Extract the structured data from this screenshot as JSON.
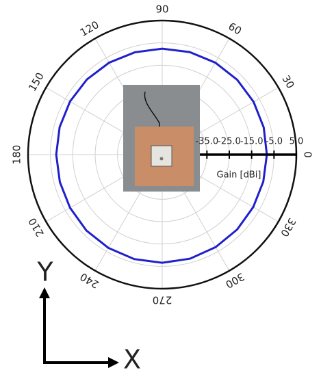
{
  "chart_data": {
    "type": "polar",
    "theta": [
      0,
      15,
      30,
      45,
      60,
      75,
      90,
      105,
      120,
      135,
      150,
      165,
      180,
      195,
      210,
      225,
      240,
      255,
      270,
      285,
      300,
      315,
      330,
      345
    ],
    "values": [
      -8.2,
      -8.0,
      -7.8,
      -7.6,
      -7.5,
      -7.5,
      -7.6,
      -7.6,
      -7.5,
      -7.4,
      -7.4,
      -7.5,
      -7.6,
      -7.6,
      -7.4,
      -7.0,
      -6.8,
      -6.6,
      -6.6,
      -6.8,
      -7.2,
      -7.6,
      -8.0,
      -8.2
    ],
    "color": "#1f1fcc",
    "rlim": [
      -55,
      5
    ],
    "rticks": [
      {
        "value": -35,
        "label": "-35.0"
      },
      {
        "value": -25,
        "label": "-25.0"
      },
      {
        "value": -15,
        "label": "-15.0"
      },
      {
        "value": -5,
        "label": "-5.0"
      },
      {
        "value": 5,
        "label": "5.0"
      }
    ],
    "thetaticks": [
      0,
      30,
      60,
      90,
      120,
      150,
      180,
      210,
      240,
      270,
      300,
      330
    ],
    "radial_axis_label": "Gain [dBi]",
    "grid": true,
    "annotations": [
      "Y",
      "X"
    ]
  }
}
